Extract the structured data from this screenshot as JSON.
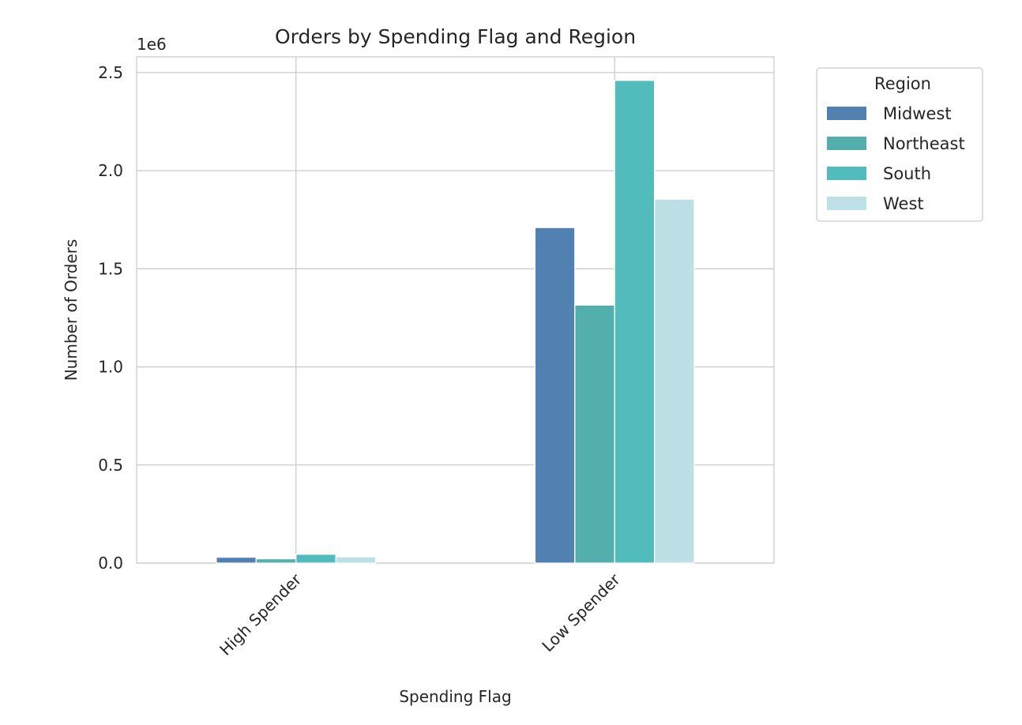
{
  "chart_data": {
    "type": "bar",
    "title": "Orders by Spending Flag and Region",
    "xlabel": "Spending Flag",
    "ylabel": "Number of Orders",
    "y_offset_label": "1e6",
    "categories": [
      "High Spender",
      "Low Spender"
    ],
    "series": [
      {
        "name": "Midwest",
        "color": "#5181b1",
        "values": [
          30000,
          1710000
        ]
      },
      {
        "name": "Northeast",
        "color": "#52afab",
        "values": [
          22000,
          1315000
        ]
      },
      {
        "name": "South",
        "color": "#52bbbc",
        "values": [
          45000,
          2460000
        ]
      },
      {
        "name": "West",
        "color": "#bddfe6",
        "values": [
          32000,
          1855000
        ]
      }
    ],
    "ylim": [
      0,
      2580000
    ],
    "yticks": [
      0,
      500000,
      1000000,
      1500000,
      2000000,
      2500000
    ],
    "ytick_labels": [
      "0.0",
      "0.5",
      "1.0",
      "1.5",
      "2.0",
      "2.5"
    ],
    "grid": true,
    "legend": {
      "title": "Region",
      "placement": "outside-upper-right"
    }
  }
}
